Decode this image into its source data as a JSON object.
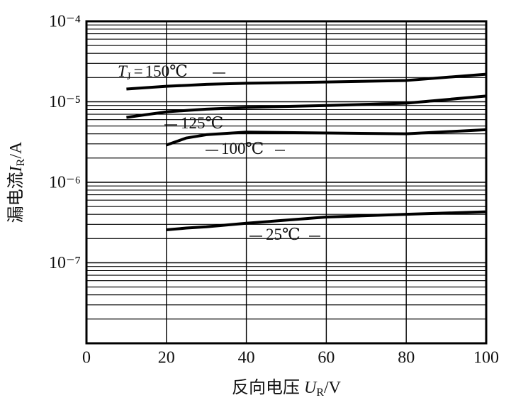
{
  "chart_data": {
    "type": "line",
    "y_label": {
      "text": "漏电流",
      "symbol": "I",
      "subscript": "R",
      "unit": "/A"
    },
    "x_label": {
      "text": "反向电压 ",
      "symbol": "U",
      "subscript": "R",
      "unit": "/V"
    },
    "label_symbol": "T",
    "label_subscript": "J",
    "label_equals": "=",
    "x": [
      10,
      20,
      25,
      30,
      40,
      60,
      80,
      100
    ],
    "series": [
      {
        "name": "150℃",
        "color": "#000000",
        "values": [
          1.44e-05,
          1.56e-05,
          1.6e-05,
          1.65e-05,
          1.7e-05,
          1.76e-05,
          1.84e-05,
          2.2e-05
        ]
      },
      {
        "name": "125℃",
        "color": "#000000",
        "values": [
          6.4e-06,
          7.5e-06,
          7.8e-06,
          8.1e-06,
          8.5e-06,
          9e-06,
          9.6e-06,
          1.18e-05
        ]
      },
      {
        "name": "100℃",
        "color": "#000000",
        "values": [
          null,
          2.9e-06,
          3.55e-06,
          3.9e-06,
          4.2e-06,
          4.1e-06,
          4e-06,
          4.5e-06
        ]
      },
      {
        "name": "25℃",
        "color": "#000000",
        "values": [
          null,
          2.57e-07,
          2.7e-07,
          2.8e-07,
          3.1e-07,
          3.7e-07,
          4e-07,
          4.3e-07
        ]
      }
    ],
    "xlim": [
      0,
      100
    ],
    "xticks": [
      0,
      20,
      40,
      60,
      80,
      100
    ],
    "ylim": [
      1e-08,
      0.0001
    ],
    "yticks": [
      {
        "value": 0.0001,
        "label": "10⁻⁴"
      },
      {
        "value": 1e-05,
        "label": "10⁻⁵"
      },
      {
        "value": 1e-06,
        "label": "10⁻⁶"
      },
      {
        "value": 1e-07,
        "label": "10⁻⁷"
      }
    ],
    "ylog": true,
    "grid": true
  }
}
